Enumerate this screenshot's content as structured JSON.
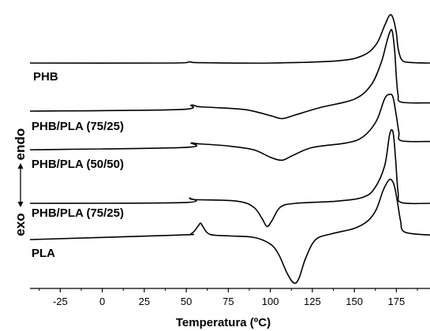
{
  "chart_data": {
    "type": "line",
    "xlabel": "Temperatura (ºC)",
    "x_ticks": [
      -25,
      0,
      25,
      50,
      75,
      100,
      125,
      150,
      175
    ],
    "xlim": [
      -43,
      195
    ],
    "y_axis_left_label": "exo",
    "y_axis_right_label": "endo",
    "grid": false,
    "line_color": "#000000",
    "series": [
      {
        "name": "PHB",
        "points": [
          [
            -43,
            0.0
          ],
          [
            40,
            0.0
          ],
          [
            52,
            0.15
          ],
          [
            58,
            0.05
          ],
          [
            100,
            0.0
          ],
          [
            140,
            0.3
          ],
          [
            155,
            1.0
          ],
          [
            163,
            2.5
          ],
          [
            168,
            5.0
          ],
          [
            171,
            6.4
          ],
          [
            173,
            6.0
          ],
          [
            175,
            4.0
          ],
          [
            176,
            2.0
          ],
          [
            178,
            0.5
          ],
          [
            182,
            0.1
          ],
          [
            195,
            0.0
          ]
        ]
      },
      {
        "name": "PHB/PLA (75/25)",
        "points": [
          [
            -43,
            0.0
          ],
          [
            45,
            0.2
          ],
          [
            53,
            0.8
          ],
          [
            57,
            0.6
          ],
          [
            65,
            0.5
          ],
          [
            85,
            0.2
          ],
          [
            100,
            -0.6
          ],
          [
            107,
            -1.0
          ],
          [
            115,
            -0.5
          ],
          [
            130,
            0.5
          ],
          [
            150,
            1.6
          ],
          [
            160,
            3.5
          ],
          [
            166,
            6.5
          ],
          [
            169,
            9.0
          ],
          [
            171,
            10.5
          ],
          [
            172.5,
            10.7
          ],
          [
            174,
            8.0
          ],
          [
            175,
            4.5
          ],
          [
            176,
            2.2
          ],
          [
            178,
            1.2
          ],
          [
            195,
            1.1
          ]
        ]
      },
      {
        "name": "PHB/PLA (50/50)",
        "points": [
          [
            -43,
            0.0
          ],
          [
            48,
            0.3
          ],
          [
            53,
            0.9
          ],
          [
            57,
            0.8
          ],
          [
            75,
            0.5
          ],
          [
            90,
            0.0
          ],
          [
            100,
            -1.0
          ],
          [
            107,
            -1.4
          ],
          [
            113,
            -0.8
          ],
          [
            125,
            0.3
          ],
          [
            145,
            0.9
          ],
          [
            155,
            1.7
          ],
          [
            163,
            3.8
          ],
          [
            168,
            6.8
          ],
          [
            171,
            7.4
          ],
          [
            173,
            7.0
          ],
          [
            175,
            4.5
          ],
          [
            176.5,
            2.3
          ],
          [
            178,
            1.2
          ],
          [
            195,
            1.1
          ]
        ]
      },
      {
        "name": "PHB/PLA (75/25)",
        "points": [
          [
            -43,
            0.0
          ],
          [
            48,
            0.1
          ],
          [
            52,
            0.7
          ],
          [
            55,
            0.5
          ],
          [
            80,
            0.3
          ],
          [
            90,
            -0.5
          ],
          [
            95,
            -2.0
          ],
          [
            98,
            -3.1
          ],
          [
            101,
            -2.3
          ],
          [
            106,
            -0.5
          ],
          [
            115,
            0.0
          ],
          [
            140,
            0.3
          ],
          [
            155,
            0.8
          ],
          [
            162,
            2.0
          ],
          [
            168,
            5.0
          ],
          [
            171,
            9.2
          ],
          [
            173,
            9.5
          ],
          [
            174.5,
            6.0
          ],
          [
            176,
            1.5
          ],
          [
            178,
            0.1
          ],
          [
            195,
            0.0
          ]
        ]
      },
      {
        "name": "PLA",
        "points": [
          [
            -43,
            0.0
          ],
          [
            45,
            0.6
          ],
          [
            53,
            0.8
          ],
          [
            57,
            1.8
          ],
          [
            58.5,
            2.2
          ],
          [
            60,
            1.7
          ],
          [
            64,
            0.7
          ],
          [
            75,
            0.5
          ],
          [
            90,
            0.3
          ],
          [
            100,
            -0.6
          ],
          [
            105,
            -2.0
          ],
          [
            110,
            -4.5
          ],
          [
            114,
            -5.8
          ],
          [
            117,
            -5.2
          ],
          [
            121,
            -2.5
          ],
          [
            127,
            0.0
          ],
          [
            137,
            0.8
          ],
          [
            150,
            1.5
          ],
          [
            158,
            2.5
          ],
          [
            163,
            4.0
          ],
          [
            167,
            6.5
          ],
          [
            170,
            7.8
          ],
          [
            172,
            8.0
          ],
          [
            174,
            7.0
          ],
          [
            176,
            4.5
          ],
          [
            177.5,
            2.5
          ],
          [
            180,
            1.0
          ],
          [
            195,
            0.6
          ]
        ]
      }
    ]
  }
}
